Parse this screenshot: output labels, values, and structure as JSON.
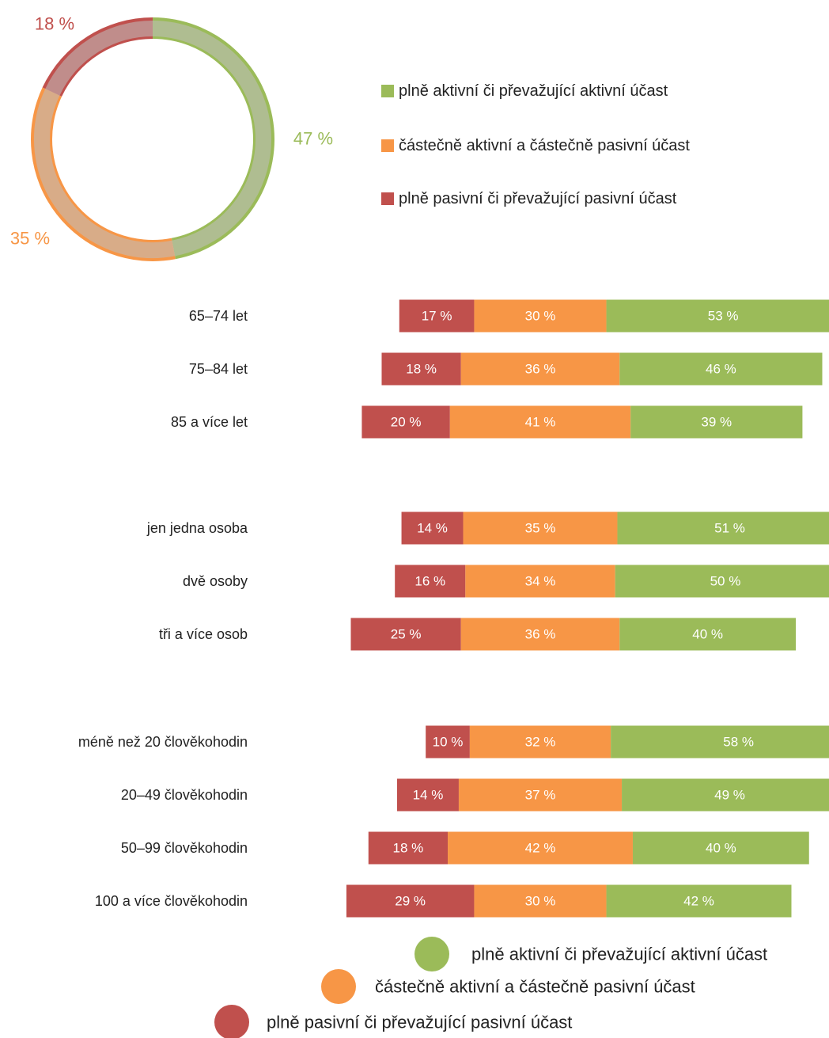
{
  "colors": {
    "active": "#9bbb59",
    "partial": "#f79646",
    "passive": "#c0504d"
  },
  "chart_data": [
    {
      "type": "pie",
      "subtype": "donut",
      "labels": [
        "plně aktivní či převažující aktivní účast",
        "částečně aktivní a částečně pasivní účast",
        "plně pasivní či převažující pasivní účast"
      ],
      "values": [
        47,
        35,
        18
      ],
      "value_labels": [
        "47 %",
        "35 %",
        "18 %"
      ],
      "legend_placement": "right"
    },
    {
      "type": "bar",
      "orientation": "horizontal",
      "stacked": true,
      "stacked_percent": true,
      "groups": [
        {
          "categories": [
            "65–74 let",
            "75–84 let",
            "85 a více let"
          ],
          "series": [
            {
              "name": "plně pasivní či převažující pasivní účast",
              "values": [
                17,
                18,
                20
              ],
              "labels": [
                "17 %",
                "18 %",
                "20 %"
              ]
            },
            {
              "name": "částečně aktivní a částečně pasivní účast",
              "values": [
                30,
                36,
                41
              ],
              "labels": [
                "30 %",
                "36 %",
                "41 %"
              ]
            },
            {
              "name": "plně aktivní či převažující aktivní účast",
              "values": [
                53,
                46,
                39
              ],
              "labels": [
                "53 %",
                "46 %",
                "39 %"
              ]
            }
          ]
        },
        {
          "categories": [
            "jen jedna osoba",
            "dvě osoby",
            "tři a více osob"
          ],
          "series": [
            {
              "name": "plně pasivní či převažující pasivní účast",
              "values": [
                14,
                16,
                25
              ],
              "labels": [
                "14 %",
                "16 %",
                "25 %"
              ]
            },
            {
              "name": "částečně aktivní a částečně pasivní účast",
              "values": [
                35,
                34,
                36
              ],
              "labels": [
                "35 %",
                "34 %",
                "36 %"
              ]
            },
            {
              "name": "plně aktivní či převažující aktivní účast",
              "values": [
                51,
                50,
                40
              ],
              "labels": [
                "51 %",
                "50 %",
                "40 %"
              ]
            }
          ]
        },
        {
          "categories": [
            "méně než 20 člověkohodin",
            "20–49 člověkohodin",
            "50–99 člověkohodin",
            "100 a více člověkohodin"
          ],
          "series": [
            {
              "name": "plně pasivní či převažující pasivní účast",
              "values": [
                10,
                14,
                18,
                29
              ],
              "labels": [
                "10 %",
                "14 %",
                "18 %",
                "29 %"
              ]
            },
            {
              "name": "částečně aktivní a částečně pasivní účast",
              "values": [
                32,
                37,
                42,
                30
              ],
              "labels": [
                "32 %",
                "37 %",
                "42 %",
                "30 %"
              ]
            },
            {
              "name": "plně aktivní či převažující aktivní účast",
              "values": [
                58,
                49,
                40,
                42
              ],
              "labels": [
                "58 %",
                "49 %",
                "40 %",
                "42 %"
              ]
            }
          ]
        }
      ],
      "legend": [
        "plně aktivní či převažující aktivní účast",
        "částečně aktivní a částečně pasivní účast",
        "plně pasivní či převažující pasivní účast"
      ],
      "legend_placement": "bottom"
    }
  ]
}
